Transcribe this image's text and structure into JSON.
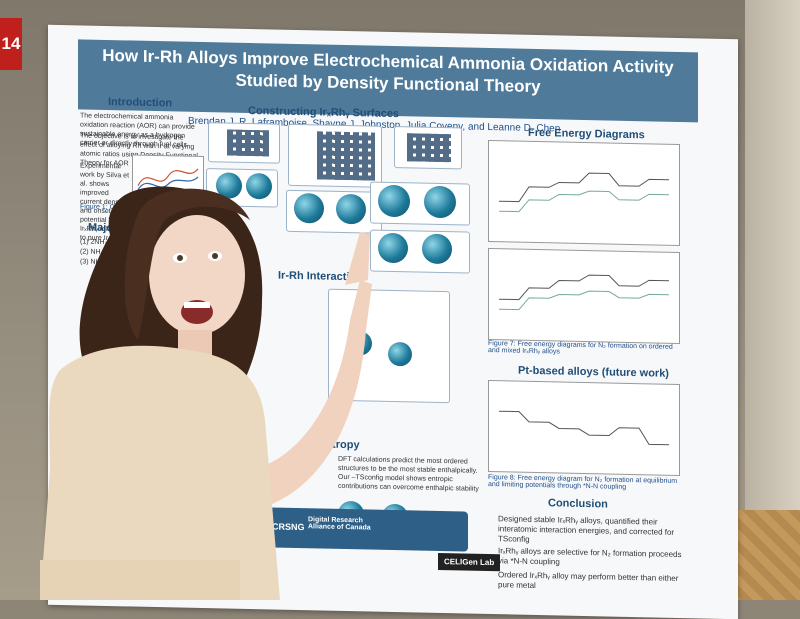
{
  "room_tag": "14",
  "poster": {
    "title_line1": "How Ir-Rh Alloys Improve Electrochemical Ammonia Oxidation Activity",
    "title_line2": "Studied by Density Functional Theory",
    "authors": "Brendan J. R. Laframboise, Shayne J. Johnston, Julia Coveny, and Leanne D. Chen",
    "sections": {
      "introduction": "Introduction",
      "constructing": "Constructing IrₓRhᵧ Surfaces",
      "free_energy": "Free Energy Diagrams",
      "major_aor": "Major AOR",
      "interaction": "Ir-Rh Interaction",
      "entropy": "Entropy",
      "pt_alloys": "Pt-based alloys (future work)",
      "conclusion": "Conclusion"
    },
    "intro_text": [
      "The electrochemical ammonia oxidation reaction (AOR) can provide sustainable energy as a hydrogen carrier or directly through fuel cells",
      "The objective is to investigate the effect of alloying Rh with Ir at varying atomic ratios using Density Functional Theory for AOR"
    ],
    "experimental_text": "Experimental work by Silva et al. shows improved current density and onset potential for IrₓRhᵧ relative to pure Ir",
    "fig1_caption": "Figure 1: Cyclic voltammogram",
    "aor_lines": [
      "(1) 2NH₃(g) + 6OH⁻",
      "(2) NH₃(g) + 7OH⁻",
      "(3) NH₃(g) + 9OH⁻"
    ],
    "fig7_caption": "Figure 7: Free energy diagrams for N₂ formation on ordered and mixed IrₓRhᵧ alloys",
    "fig8_caption": "Figure 8: Free energy diagram for N₂ formation at equilibrium and limiting potentials through *N-N coupling",
    "entropy_text": "DFT calculations predict the most ordered structures to be the most stable enthalpically. Our –TSconfig model shows entropic contributions can overcome enthalpic stability",
    "conclusion_items": [
      "Designed stable IrₓRhᵧ alloys, quantified their interatomic interaction energies, and corrected for TSconfig",
      "IrₓRhᵧ alloys are selective for N₂ formation proceeds via *N-N coupling",
      "Ordered IrₓRhᵧ alloy may perform better than either pure metal"
    ],
    "sponsors": [
      "NSERC CRSNG",
      "Digital Research Alliance of Canada",
      "CELIGen Lab"
    ]
  }
}
